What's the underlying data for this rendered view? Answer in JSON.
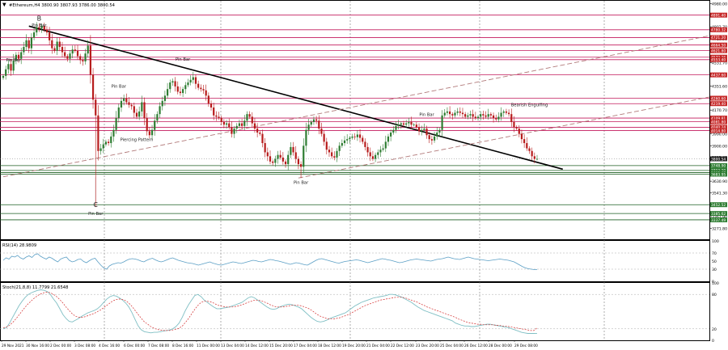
{
  "header": {
    "symbol_line": "#Ethereum,H4  3800.90 3807.93 3786.00 3800.54"
  },
  "colors": {
    "bull": "#2e7d32",
    "bear": "#b71c1c",
    "resistance_line": "#c2185b",
    "support_line": "#1b5e20",
    "trendline": "#000000",
    "channel": "#b27a7a",
    "rsi_line": "#5b9fc5",
    "stoch_main": "#7fbfc4",
    "stoch_signal": "#d32f2f",
    "red_tag": "#c62828",
    "green_tag": "#2e7d32",
    "dark_tag": "#222222"
  },
  "chart_data": {
    "type": "candlestick",
    "title": "#Ethereum,H4",
    "ohlc_header": {
      "open": 3800.9,
      "high": 3807.93,
      "low": 3786.0,
      "close": 3800.54
    },
    "ylim": [
      3190,
      5000
    ],
    "y_ticks": [
      4980.0,
      4891.4,
      4802.7,
      4710.9,
      4621.8,
      4531.7,
      4441.5,
      4351.6,
      4260.6,
      4170.7,
      4081.8,
      3990.0,
      3900.0,
      3812.4,
      3720.9,
      3630.9,
      3541.3,
      3451.6,
      3361.9,
      3271.8
    ],
    "x_ticks": [
      "29 Nov 2021",
      "30 Nov 16:00",
      "2 Dec 00:00",
      "3 Dec 08:00",
      "4 Dec 16:00",
      "6 Dec 00:00",
      "7 Dec 08:00",
      "8 Dec 16:00",
      "10 Dec 00:00",
      "11 Dec 08:00",
      "12 Dec 16:00",
      "14 Dec 00:00",
      "15 Dec 08:00",
      "16 Dec 16:00",
      "18 Dec 00:00",
      "19 Dec 08:00",
      "20 Dec 16:00",
      "22 Dec 00:00",
      "23 Dec 08:00",
      "24 Dec 16:00",
      "26 Dec 00:00",
      "27 Dec 08:00",
      "28 Dec 16:00",
      "29 Dec 08:00"
    ],
    "x_ticks_shown": [
      "29 Nov 2021",
      "30 Nov 16:00",
      "2 Dec 00:00",
      "3 Dec 08:00",
      "4 Dec 16:00",
      "6 Dec 00:00",
      "7 Dec 08:00",
      "8 Dec 16:00",
      "11 Dec 00:00",
      "13 Dec 04:00",
      "14 Dec 12:00",
      "15 Dec 20:00",
      "17 Dec 04:00",
      "18 Dec 12:00",
      "19 Dec 20:00",
      "21 Dec 04:00",
      "22 Dec 12:00",
      "23 Dec 20:00",
      "25 Dec 04:00",
      "26 Dec 12:00",
      "28 Dec 00:00",
      "29 Dec 08:00"
    ],
    "closes": [
      4430,
      4480,
      4520,
      4470,
      4545,
      4590,
      4560,
      4610,
      4650,
      4700,
      4640,
      4720,
      4760,
      4800,
      4790,
      4810,
      4780,
      4760,
      4700,
      4640,
      4620,
      4690,
      4650,
      4610,
      4580,
      4560,
      4600,
      4630,
      4620,
      4580,
      4550,
      4540,
      4600,
      4660,
      4440,
      4250,
      4130,
      3860,
      3880,
      3910,
      3930,
      3920,
      3970,
      4020,
      4110,
      4190,
      4240,
      4260,
      4230,
      4210,
      4200,
      4150,
      4120,
      4160,
      4230,
      4110,
      4010,
      3980,
      4020,
      4090,
      4140,
      4200,
      4240,
      4280,
      4330,
      4380,
      4390,
      4350,
      4310,
      4300,
      4330,
      4360,
      4380,
      4400,
      4420,
      4370,
      4340,
      4330,
      4320,
      4280,
      4220,
      4190,
      4130,
      4120,
      4110,
      4080,
      4060,
      4070,
      4040,
      3990,
      4030,
      4050,
      4070,
      4050,
      4090,
      4140,
      4120,
      4070,
      4030,
      4000,
      3990,
      3920,
      3850,
      3820,
      3780,
      3770,
      3800,
      3830,
      3810,
      3780,
      3760,
      3830,
      3890,
      3850,
      3800,
      3760,
      3740,
      3900,
      4020,
      4060,
      4080,
      4100,
      4090,
      4030,
      3990,
      3930,
      3870,
      3850,
      3820,
      3810,
      3860,
      3900,
      3920,
      3940,
      3950,
      3960,
      3970,
      3965,
      3985,
      3960,
      3930,
      3890,
      3850,
      3820,
      3800,
      3830,
      3850,
      3870,
      3880,
      3930,
      3970,
      4000,
      4020,
      4050,
      4060,
      4070,
      4060,
      4070,
      4080,
      4060,
      4060,
      4040,
      4010,
      4020,
      4030,
      3980,
      3950,
      3940,
      3970,
      4000,
      4020,
      4130,
      4150,
      4160,
      4140,
      4130,
      4150,
      4160,
      4150,
      4140,
      4120,
      4130,
      4140,
      4120,
      4110,
      4120,
      4140,
      4130,
      4120,
      4140,
      4130,
      4110,
      4100,
      4120,
      4150,
      4160,
      4150,
      4140,
      4080,
      4040,
      4030,
      3990,
      3950,
      3920,
      3880,
      3860,
      3820,
      3800,
      3800
    ],
    "levels": {
      "resistance": [
        4891.4,
        4780.32,
        4721.2,
        4664.5,
        4621.8,
        4572.26,
        4553.4,
        4437.6,
        4260.6,
        4219.4,
        4109.81,
        4081.8,
        4040.24,
        4014.8
      ],
      "support": [
        3800.54,
        3748.9,
        3712.2,
        3695.67,
        3683.95,
        3452.52,
        3385.62,
        3337.49
      ]
    },
    "price_labels": [
      {
        "text": "4891.40",
        "value": 4891.4,
        "kind": "red"
      },
      {
        "text": "4780.32",
        "value": 4780.32,
        "kind": "red"
      },
      {
        "text": "4721.20",
        "value": 4721.2,
        "kind": "red"
      },
      {
        "text": "4664.50",
        "value": 4664.5,
        "kind": "red"
      },
      {
        "text": "4621.80",
        "value": 4621.8,
        "kind": "red"
      },
      {
        "text": "4572.26",
        "value": 4572.26,
        "kind": "red"
      },
      {
        "text": "4553.40",
        "value": 4553.4,
        "kind": "red"
      },
      {
        "text": "4437.60",
        "value": 4437.6,
        "kind": "red"
      },
      {
        "text": "4260.60",
        "value": 4260.6,
        "kind": "red"
      },
      {
        "text": "4219.40",
        "value": 4219.4,
        "kind": "red"
      },
      {
        "text": "4109.81",
        "value": 4109.81,
        "kind": "red"
      },
      {
        "text": "4081.80",
        "value": 4081.8,
        "kind": "red"
      },
      {
        "text": "4040.24",
        "value": 4040.24,
        "kind": "red"
      },
      {
        "text": "4014.80",
        "value": 4014.8,
        "kind": "red"
      },
      {
        "text": "3800.54",
        "value": 3800.54,
        "kind": "dark"
      },
      {
        "text": "3748.90",
        "value": 3748.9,
        "kind": "green"
      },
      {
        "text": "3712.20",
        "value": 3712.2,
        "kind": "green"
      },
      {
        "text": "3695.67",
        "value": 3695.67,
        "kind": "green"
      },
      {
        "text": "3683.95",
        "value": 3683.95,
        "kind": "green"
      },
      {
        "text": "3452.52",
        "value": 3452.52,
        "kind": "green"
      },
      {
        "text": "3385.62",
        "value": 3385.62,
        "kind": "green"
      },
      {
        "text": "3337.49",
        "value": 3337.49,
        "kind": "green"
      }
    ],
    "trendline": {
      "from": {
        "bar": 10,
        "price": 4808
      },
      "to": {
        "bar": 218,
        "price": 3722
      }
    },
    "channel_lower": {
      "from": {
        "bar": 0,
        "price": 3664
      },
      "to": {
        "bar": 286,
        "price": 4735
      }
    },
    "channel_upper": {
      "from": {
        "bar": 115,
        "price": 3655
      },
      "to": {
        "bar": 286,
        "price": 4270
      }
    },
    "annotations": [
      {
        "text": "B",
        "bar": 14,
        "price": 4850
      },
      {
        "text": "Pin Bar",
        "bar": 14,
        "price": 4805
      },
      {
        "text": "Pin Bar",
        "bar": 4,
        "price": 4540
      },
      {
        "text": "Pin Bar",
        "bar": 70,
        "price": 4545
      },
      {
        "text": "Pin Bar",
        "bar": 45,
        "price": 4340
      },
      {
        "text": "Piercing Pattern",
        "bar": 52,
        "price": 3935
      },
      {
        "text": "Pin Bar",
        "bar": 116,
        "price": 3610
      },
      {
        "text": "Pin Bar",
        "bar": 165,
        "price": 4125
      },
      {
        "text": "Bearish Engulfing",
        "bar": 205,
        "price": 4200
      },
      {
        "text": "C",
        "bar": 36,
        "price": 3435
      },
      {
        "text": "Pin Bar",
        "bar": 36,
        "price": 3375
      }
    ],
    "rsi": {
      "label": "RSI(14) 28.9809",
      "value": 28.9809,
      "ylim": [
        0,
        100
      ],
      "y_ticks": [
        100,
        70,
        50,
        30,
        0
      ],
      "values": [
        52,
        58,
        55,
        62,
        60,
        64,
        58,
        55,
        60,
        63,
        59,
        66,
        68,
        62,
        58,
        55,
        60,
        57,
        52,
        48,
        55,
        58,
        60,
        52,
        48,
        50,
        54,
        55,
        49,
        46,
        51,
        55,
        57,
        48,
        40,
        33,
        30,
        38,
        42,
        44,
        46,
        45,
        48,
        52,
        55,
        56,
        55,
        53,
        50,
        48,
        52,
        55,
        57,
        53,
        50,
        48,
        50,
        53,
        56,
        58,
        55,
        52,
        50,
        48,
        46,
        45,
        44,
        42,
        40,
        42,
        44,
        46,
        48,
        45,
        43,
        41,
        40,
        42,
        44,
        46,
        48,
        47,
        45,
        44,
        46,
        48,
        50,
        52,
        51,
        49,
        48,
        50,
        52,
        54,
        53,
        51,
        50,
        48,
        46,
        44,
        42,
        44,
        46,
        45,
        43,
        41,
        40,
        44,
        48,
        52,
        55,
        56,
        54,
        52,
        50,
        48,
        46,
        45,
        47,
        49,
        50,
        51,
        52,
        53,
        52,
        50,
        48,
        46,
        48,
        50,
        52,
        54,
        56,
        55,
        53,
        52,
        50,
        48,
        46,
        47,
        49,
        51,
        53,
        54,
        55,
        54,
        53,
        52,
        51,
        50,
        52,
        54,
        55,
        56,
        58,
        60,
        58,
        56,
        55,
        54,
        56,
        58,
        60,
        58,
        56,
        55,
        54,
        53,
        52,
        51,
        52,
        53,
        54,
        55,
        54,
        53,
        52,
        50,
        48,
        44,
        40,
        36,
        33,
        31,
        30,
        29,
        29
      ]
    },
    "stochastic": {
      "label": "Stoch(21,8,8) 11.7799 21.6548",
      "main_value": 11.7799,
      "signal_value": 21.6548,
      "ylim": [
        0,
        100
      ],
      "y_ticks": [
        100,
        80,
        20,
        0
      ],
      "main": [
        20,
        22,
        30,
        40,
        50,
        60,
        68,
        75,
        80,
        83,
        85,
        87,
        88,
        87,
        85,
        80,
        72,
        65,
        55,
        45,
        38,
        33,
        32,
        35,
        38,
        42,
        45,
        48,
        50,
        52,
        55,
        60,
        66,
        72,
        76,
        78,
        77,
        74,
        70,
        65,
        58,
        48,
        36,
        25,
        18,
        15,
        14,
        13,
        14,
        14,
        15,
        16,
        17,
        18,
        20,
        24,
        30,
        40,
        52,
        62,
        70,
        78,
        80,
        76,
        70,
        66,
        62,
        58,
        55,
        55,
        56,
        57,
        58,
        60,
        62,
        64,
        66,
        70,
        74,
        76,
        74,
        70,
        66,
        62,
        58,
        55,
        54,
        55,
        58,
        60,
        62,
        63,
        62,
        60,
        58,
        55,
        50,
        45,
        40,
        36,
        33,
        32,
        33,
        35,
        38,
        40,
        42,
        44,
        46,
        48,
        52,
        56,
        60,
        63,
        66,
        68,
        70,
        72,
        74,
        75,
        76,
        77,
        78,
        80,
        80,
        79,
        77,
        75,
        72,
        69,
        66,
        62,
        58,
        55,
        52,
        50,
        48,
        46,
        44,
        42,
        40,
        38,
        36,
        34,
        30,
        28,
        26,
        25,
        25,
        24,
        24,
        25,
        26,
        27,
        28,
        28,
        27,
        26,
        25,
        24,
        23,
        22,
        20,
        18,
        16,
        14,
        13,
        12,
        12,
        12,
        11.78
      ],
      "signal": [
        22,
        23,
        26,
        31,
        37,
        44,
        51,
        58,
        64,
        69,
        74,
        78,
        81,
        83,
        84,
        83,
        80,
        76,
        71,
        65,
        58,
        52,
        46,
        42,
        40,
        40,
        41,
        43,
        45,
        47,
        50,
        53,
        57,
        61,
        65,
        69,
        71,
        72,
        71,
        69,
        65,
        59,
        52,
        45,
        38,
        32,
        28,
        24,
        21,
        19,
        18,
        17,
        17,
        17,
        18,
        19,
        21,
        25,
        31,
        38,
        46,
        54,
        61,
        66,
        68,
        68,
        67,
        65,
        62,
        60,
        59,
        58,
        58,
        58,
        59,
        60,
        62,
        64,
        66,
        68,
        70,
        70,
        69,
        67,
        65,
        62,
        60,
        58,
        58,
        58,
        59,
        60,
        61,
        61,
        61,
        60,
        58,
        56,
        53,
        49,
        45,
        42,
        40,
        38,
        37,
        37,
        38,
        39,
        41,
        43,
        45,
        48,
        51,
        54,
        57,
        60,
        62,
        64,
        66,
        68,
        70,
        71,
        72,
        73,
        74,
        75,
        75,
        75,
        74,
        72,
        70,
        68,
        66,
        63,
        61,
        58,
        56,
        54,
        52,
        50,
        48,
        46,
        44,
        42,
        40,
        37,
        35,
        33,
        31,
        30,
        29,
        28,
        28,
        27,
        27,
        27,
        27,
        26,
        26,
        25,
        25,
        24,
        23,
        22,
        21,
        20,
        19,
        18,
        17,
        17,
        21.65
      ]
    }
  }
}
